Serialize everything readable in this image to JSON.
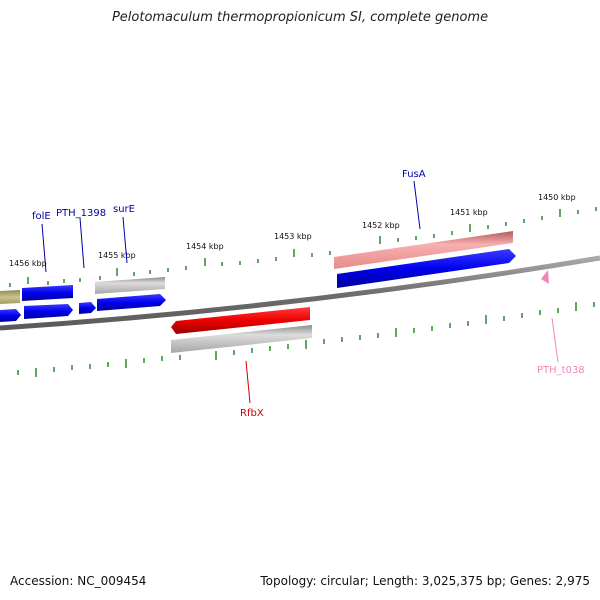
{
  "title": "Pelotomaculum thermopropionicum SI, complete genome",
  "footer": {
    "accession": "Accession: NC_009454",
    "summary": "Topology: circular; Length: 3,025,375 bp; Genes: 2,975"
  },
  "colors": {
    "backbone": "#777777",
    "tick": "#2e8b2e",
    "gene_blue": "#0000ee",
    "gene_red": "#ee0000",
    "gene_gray": "#b0b0b0",
    "gene_pink": "#ee9999",
    "gene_olive": "#b5b07a",
    "trna_pink": "#ee88bb",
    "label_blue": "#0000aa",
    "label_red": "#cc0000",
    "label_pink": "#ee88bb"
  },
  "kbp_labels": [
    "1456 kbp",
    "1455 kbp",
    "1454 kbp",
    "1453 kbp",
    "1452 kbp",
    "1451 kbp",
    "1450 kbp"
  ],
  "gene_labels": [
    {
      "name": "folE",
      "color": "blue"
    },
    {
      "name": "PTH_1398",
      "color": "blue"
    },
    {
      "name": "surE",
      "color": "blue"
    },
    {
      "name": "FusA",
      "color": "blue"
    },
    {
      "name": "RfbX",
      "color": "red"
    },
    {
      "name": "PTH_t038",
      "color": "pink"
    }
  ]
}
